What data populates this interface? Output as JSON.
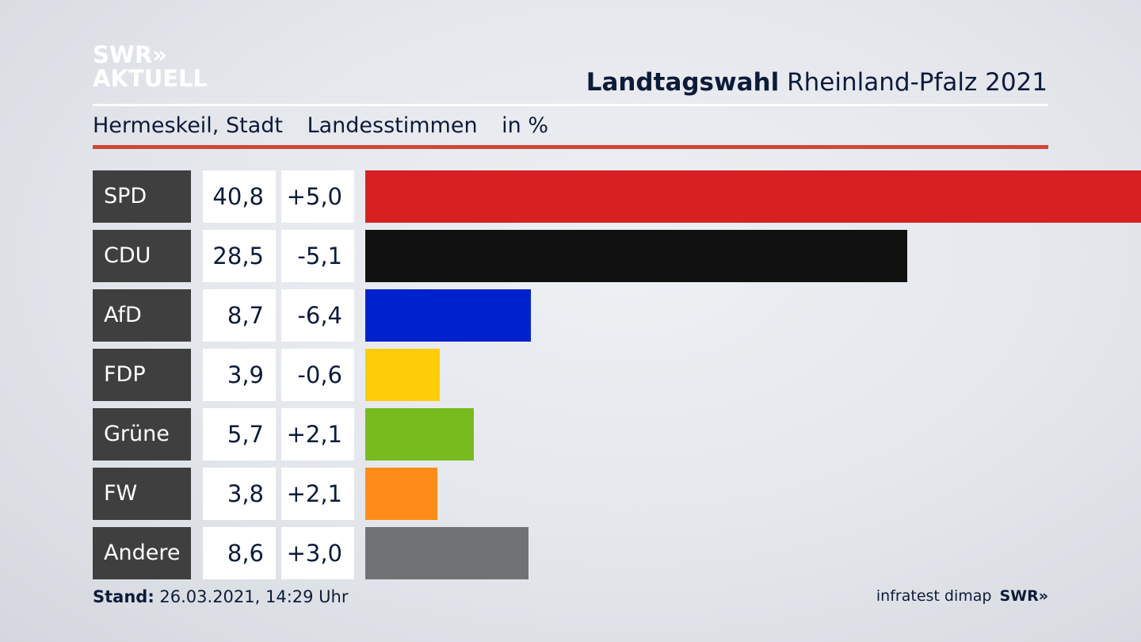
{
  "logo": {
    "line1": "SWR»",
    "line2": "AKTUELL"
  },
  "header": {
    "title_bold": "Landtagswahl",
    "title_rest": " Rheinland-Pfalz 2021",
    "location": "Hermeskeil, Stadt",
    "vote_type": "Landesstimmen",
    "unit": "in %"
  },
  "chart_data": {
    "type": "bar",
    "orientation": "horizontal",
    "categories": [
      "SPD",
      "CDU",
      "AfD",
      "FDP",
      "Grüne",
      "FW",
      "Andere"
    ],
    "values": [
      40.8,
      28.5,
      8.7,
      3.9,
      5.7,
      3.8,
      8.6
    ],
    "values_label": [
      "40,8",
      "28,5",
      "8,7",
      "3,9",
      "5,7",
      "3,8",
      "8,6"
    ],
    "diff_label": [
      "+5,0",
      "-5,1",
      "-6,4",
      "-0,6",
      "+2,1",
      "+2,1",
      "+3,0"
    ],
    "colors": [
      "#d62021",
      "#111111",
      "#0022cc",
      "#ffcc0a",
      "#77bb1e",
      "#ff8c18",
      "#717274"
    ],
    "xlim": [
      0,
      40.8
    ],
    "grid": false
  },
  "footer": {
    "stand_label": "Stand:",
    "stand_value": " 26.03.2021, 14:29 Uhr",
    "source": "infratest dimap",
    "brand": "SWR»"
  }
}
